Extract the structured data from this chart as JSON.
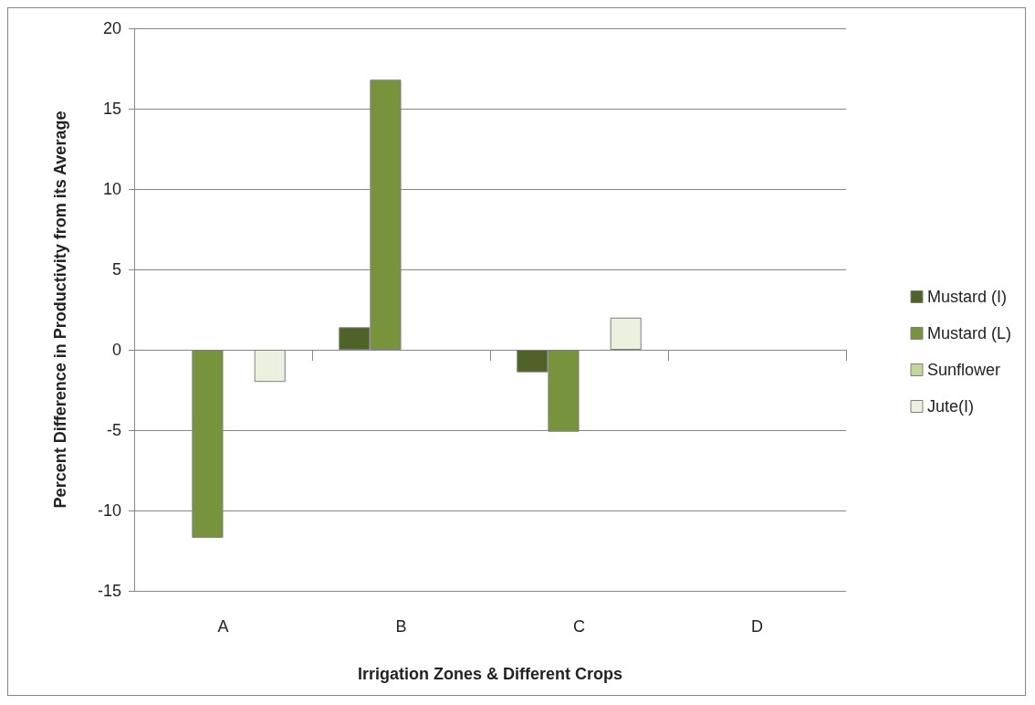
{
  "chart_data": {
    "type": "bar",
    "xlabel": "Irrigation Zones & Different Crops",
    "ylabel": "Percent Difference in Productivity from its Average",
    "categories": [
      "A",
      "B",
      "C",
      "D"
    ],
    "series": [
      {
        "name": "Mustard (I)",
        "color": "#4f6228",
        "values": [
          null,
          1.4,
          -1.4,
          null
        ]
      },
      {
        "name": "Mustard (L)",
        "color": "#77933c",
        "values": [
          -11.7,
          16.8,
          -5.1,
          null
        ]
      },
      {
        "name": "Sunflower",
        "color": "#c3d69b",
        "values": [
          null,
          null,
          null,
          null
        ]
      },
      {
        "name": "Jute(I)",
        "color": "#ebf1de",
        "values": [
          -2.0,
          null,
          2.0,
          null
        ]
      }
    ],
    "ylim": [
      -15,
      20
    ],
    "yticks": [
      -15,
      -10,
      -5,
      0,
      5,
      10,
      15,
      20
    ],
    "grid": "y",
    "legend": "right"
  }
}
